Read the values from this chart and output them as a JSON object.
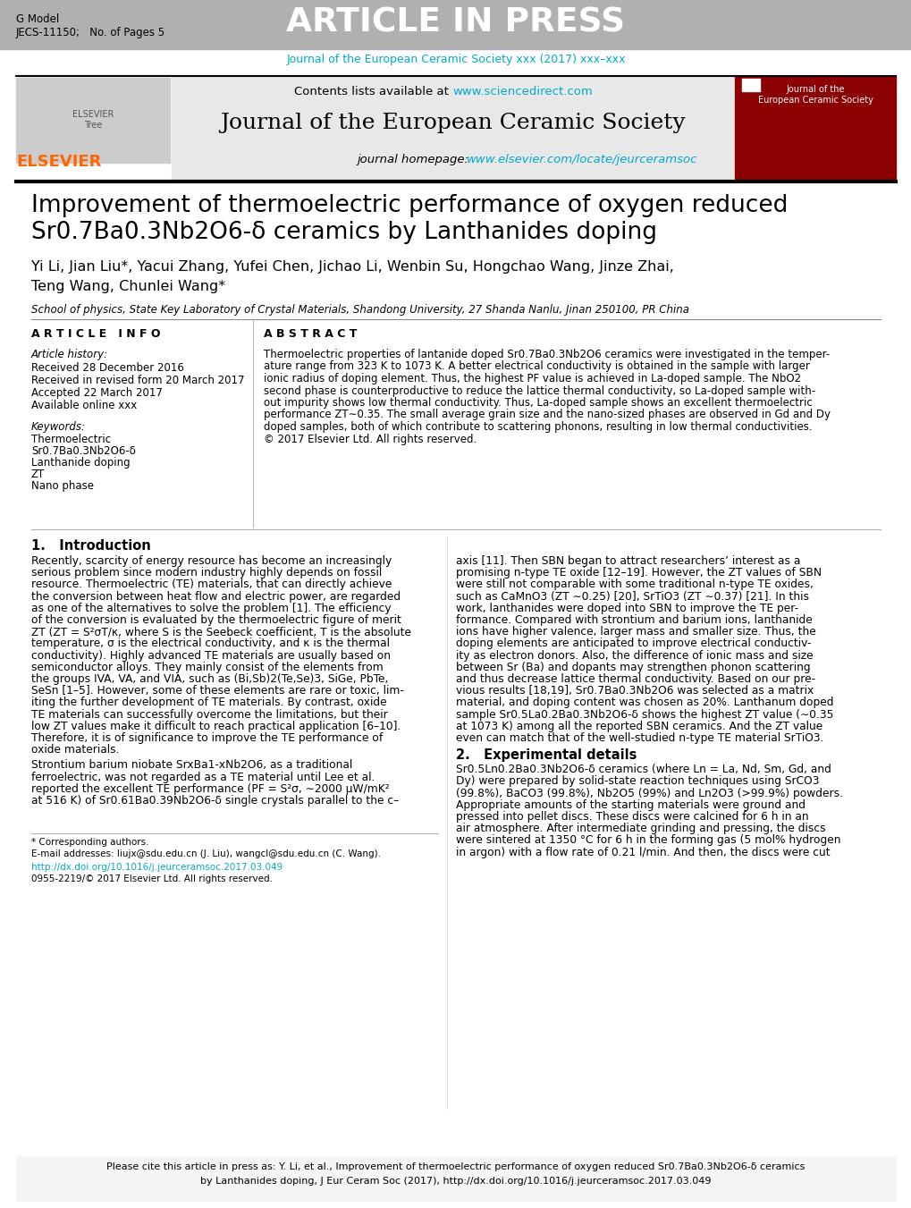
{
  "header_bg_color": "#b0b0b0",
  "header_text": "ARTICLE IN PRESS",
  "header_left_line1": "G Model",
  "header_left_line2": "JECS-11150;   No. of Pages 5",
  "journal_cite": "Journal of the European Ceramic Society xxx (2017) xxx–xxx",
  "journal_cite_color": "#00aacc",
  "sciencedirect_url": "www.sciencedirect.com",
  "journal_name": "Journal of the European Ceramic Society",
  "homepage_url": "www.elsevier.com/locate/jeurceramsoc",
  "url_color": "#00aacc",
  "elsevier_color": "#FF6600",
  "title_line1": "Improvement of thermoelectric performance of oxygen reduced",
  "title_line2": "Sr0.7Ba0.3Nb2O6-δ ceramics by Lanthanides doping",
  "authors": "Yi Li, Jian Liu*, Yacui Zhang, Yufei Chen, Jichao Li, Wenbin Su, Hongchao Wang, Jinze Zhai,",
  "authors2": "Teng Wang, Chunlei Wang*",
  "affiliation": "School of physics, State Key Laboratory of Crystal Materials, Shandong University, 27 Shanda Nanlu, Jinan 250100, PR China",
  "article_info_label": "A R T I C L E   I N F O",
  "abstract_label": "A B S T R A C T",
  "article_history_label": "Article history:",
  "received_line1": "Received 28 December 2016",
  "received_line2": "Received in revised form 20 March 2017",
  "accepted_line": "Accepted 22 March 2017",
  "available_line": "Available online xxx",
  "keywords_label": "Keywords:",
  "keyword1": "Thermoelectric",
  "keyword2": "Sr0.7Ba0.3Nb2O6-δ",
  "keyword3": "Lanthanide doping",
  "keyword4": "ZT",
  "keyword5": "Nano phase",
  "footer_note": "* Corresponding authors.",
  "footer_email": "E-mail addresses: liujx@sdu.edu.cn (J. Liu), wangcl@sdu.edu.cn (C. Wang).",
  "footer_doi": "http://dx.doi.org/10.1016/j.jeurceramsoc.2017.03.049",
  "footer_issn": "0955-2219/© 2017 Elsevier Ltd. All rights reserved.",
  "cite_box_url": "http://dx.doi.org/10.1016/j.jeurceramsoc.2017.03.049",
  "fig_width": 10.2,
  "fig_height": 13.51,
  "dpi": 100
}
